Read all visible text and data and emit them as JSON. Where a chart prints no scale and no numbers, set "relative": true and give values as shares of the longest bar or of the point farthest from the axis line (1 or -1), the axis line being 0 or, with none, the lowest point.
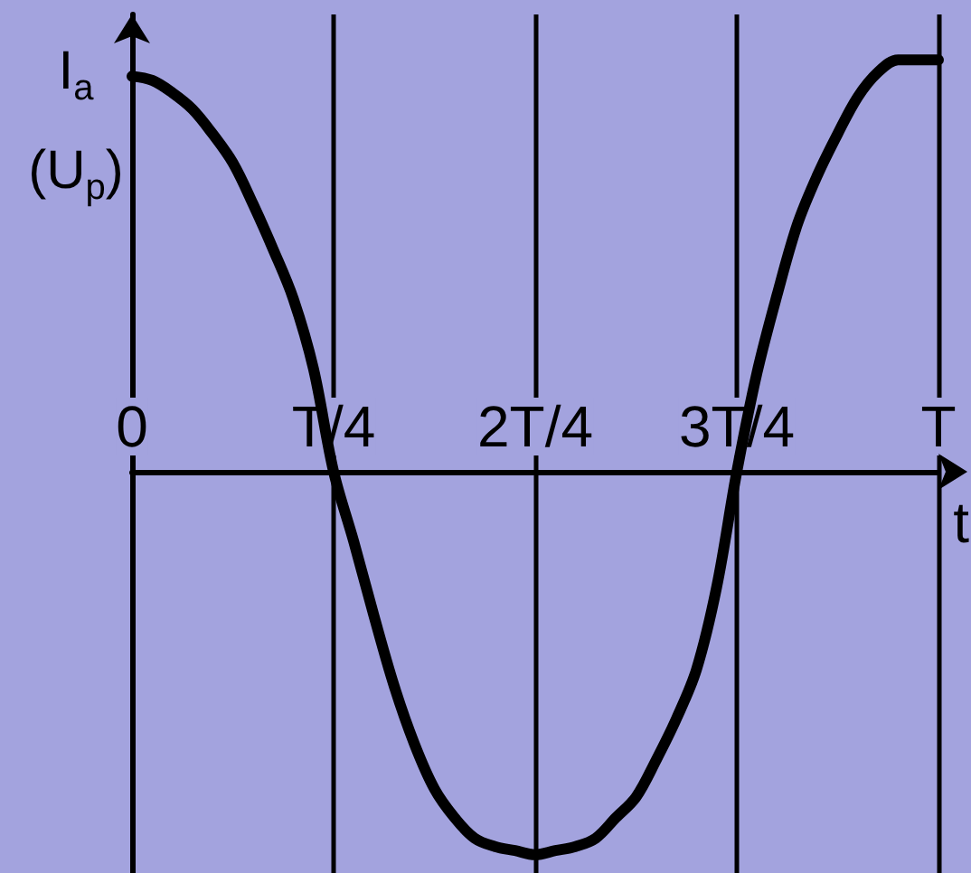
{
  "chart_data": {
    "type": "line",
    "ylabel": "I$_{a}$ (U$_{p}$)",
    "xlabel": "t",
    "categories": [
      "0",
      null,
      null,
      null,
      null,
      null,
      null,
      null,
      null,
      null,
      "T/4",
      null,
      null,
      null,
      null,
      null,
      null,
      null,
      null,
      null,
      "2T/4",
      null,
      null,
      null,
      null,
      null,
      null,
      null,
      null,
      null,
      "3T/4",
      null,
      null,
      null,
      null,
      null,
      null,
      null,
      null,
      null,
      "T"
    ],
    "values": [
      0.96,
      0.95,
      0.92,
      0.88,
      0.82,
      0.75,
      0.65,
      0.54,
      0.42,
      0.25,
      0,
      -0.17,
      -0.35,
      -0.52,
      -0.66,
      -0.77,
      -0.84,
      -0.89,
      -0.91,
      -0.92,
      -0.93,
      -0.92,
      -0.91,
      -0.89,
      -0.84,
      -0.79,
      -0.7,
      -0.6,
      -0.48,
      -0.28,
      0,
      0.24,
      0.43,
      0.6,
      0.72,
      0.82,
      0.91,
      0.97,
      1,
      1,
      1
    ],
    "color": "#000000",
    "relative": true,
    "grid": "x",
    "tick_labels": "x",
    "marker": "none",
    "line_style": "solid"
  }
}
